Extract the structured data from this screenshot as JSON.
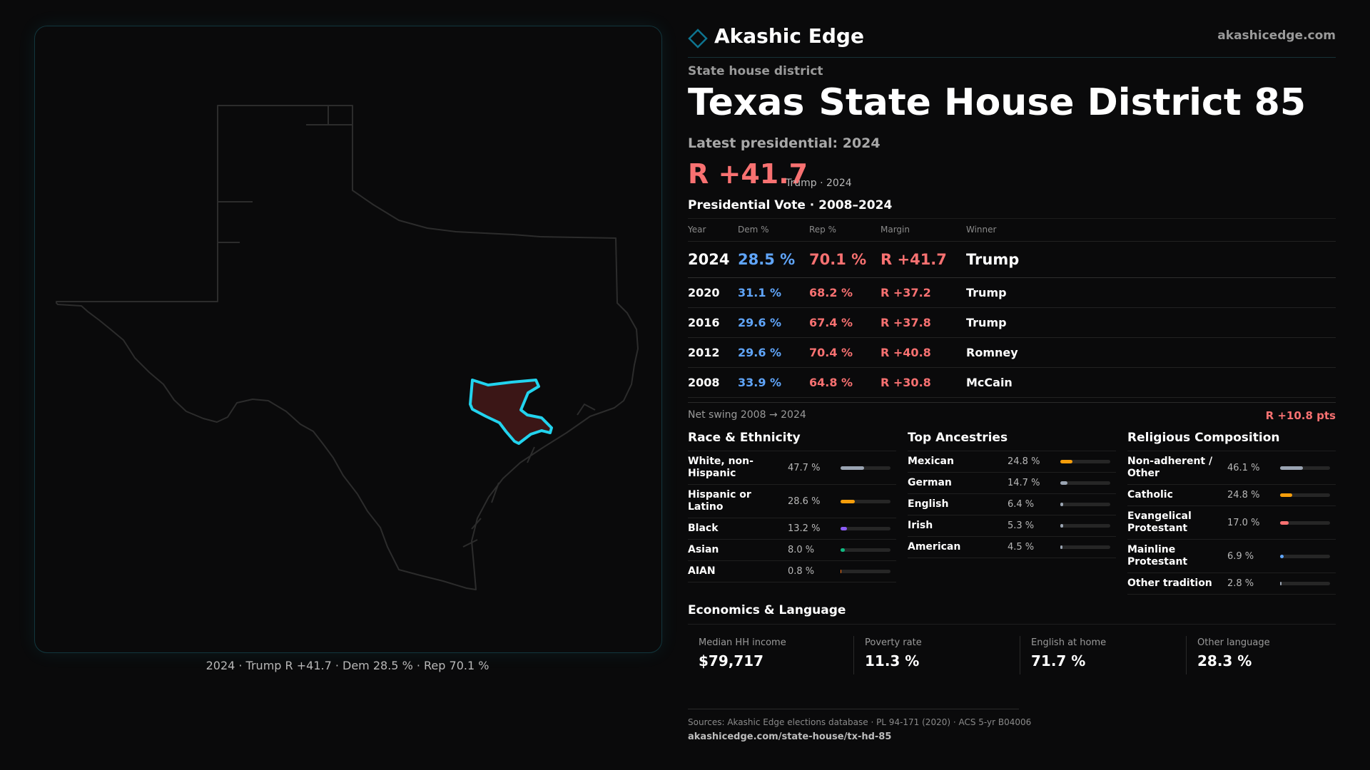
{
  "brand": {
    "name": "Akashic Edge",
    "url": "akashicedge.com",
    "logo_icon": "diamond-outline-icon",
    "accent": "#0e7490"
  },
  "district": {
    "type_label": "State house district",
    "state": "Texas",
    "name": "State House District 85"
  },
  "latest": {
    "label": "Latest presidential: 2024",
    "margin": "R +41.7",
    "detail": "Trump · 2024"
  },
  "vote_table": {
    "title": "Presidential Vote · 2008–2024",
    "headers": [
      "Year",
      "Dem %",
      "Rep %",
      "Margin",
      "Winner"
    ],
    "rows": [
      {
        "year": "2024",
        "dem": "28.5 %",
        "rep": "70.1 %",
        "margin": "R +41.7",
        "winner": "Trump"
      },
      {
        "year": "2020",
        "dem": "31.1 %",
        "rep": "68.2 %",
        "margin": "R +37.2",
        "winner": "Trump"
      },
      {
        "year": "2016",
        "dem": "29.6 %",
        "rep": "67.4 %",
        "margin": "R +37.8",
        "winner": "Trump"
      },
      {
        "year": "2012",
        "dem": "29.6 %",
        "rep": "70.4 %",
        "margin": "R +40.8",
        "winner": "Romney"
      },
      {
        "year": "2008",
        "dem": "33.9 %",
        "rep": "64.8 %",
        "margin": "R +30.8",
        "winner": "McCain"
      }
    ],
    "swing_label": "Net swing 2008 → 2024",
    "swing_value": "R +10.8 pts"
  },
  "race": {
    "title": "Race & Ethnicity",
    "items": [
      {
        "label": "White, non-Hispanic",
        "value": "47.7 %",
        "pct": 47.7,
        "color": "#9aa4b2"
      },
      {
        "label": "Hispanic or Latino",
        "value": "28.6 %",
        "pct": 28.6,
        "color": "#f59e0b"
      },
      {
        "label": "Black",
        "value": "13.2 %",
        "pct": 13.2,
        "color": "#8b5cf6"
      },
      {
        "label": "Asian",
        "value": "8.0 %",
        "pct": 8.0,
        "color": "#10b981"
      },
      {
        "label": "AIAN",
        "value": "0.8 %",
        "pct": 0.8,
        "color": "#f97316"
      }
    ]
  },
  "ancestry": {
    "title": "Top Ancestries",
    "items": [
      {
        "label": "Mexican",
        "value": "24.8 %",
        "pct": 24.8,
        "color": "#f59e0b"
      },
      {
        "label": "German",
        "value": "14.7 %",
        "pct": 14.7,
        "color": "#9aa4b2"
      },
      {
        "label": "English",
        "value": "6.4 %",
        "pct": 6.4,
        "color": "#9aa4b2"
      },
      {
        "label": "Irish",
        "value": "5.3 %",
        "pct": 5.3,
        "color": "#9aa4b2"
      },
      {
        "label": "American",
        "value": "4.5 %",
        "pct": 4.5,
        "color": "#9aa4b2"
      }
    ]
  },
  "religion": {
    "title": "Religious Composition",
    "items": [
      {
        "label": "Non-adherent / Other",
        "value": "46.1 %",
        "pct": 46.1,
        "color": "#9aa4b2"
      },
      {
        "label": "Catholic",
        "value": "24.8 %",
        "pct": 24.8,
        "color": "#f59e0b"
      },
      {
        "label": "Evangelical Protestant",
        "value": "17.0 %",
        "pct": 17.0,
        "color": "#f87171"
      },
      {
        "label": "Mainline Protestant",
        "value": "6.9 %",
        "pct": 6.9,
        "color": "#60a5fa"
      },
      {
        "label": "Other tradition",
        "value": "2.8 %",
        "pct": 2.8,
        "color": "#9aa4b2"
      }
    ]
  },
  "economics": {
    "title": "Economics & Language",
    "items": [
      {
        "label": "Median HH income",
        "value": "$79,717"
      },
      {
        "label": "Poverty rate",
        "value": "11.3 %"
      },
      {
        "label": "English at home",
        "value": "71.7 %"
      },
      {
        "label": "Other language",
        "value": "28.3 %"
      }
    ]
  },
  "map": {
    "caption": "2024 · Trump R +41.7 · Dem 28.5 % · Rep 70.1 %",
    "state_outline_color": "#2c2c2c",
    "district_stroke_color": "#22d3ee",
    "district_fill_color": "#3b1616"
  },
  "footer": {
    "sources": "Sources: Akashic Edge elections database · PL 94-171 (2020) · ACS 5-yr B04006",
    "permalink": "akashicedge.com/state-house/tx-hd-85"
  }
}
